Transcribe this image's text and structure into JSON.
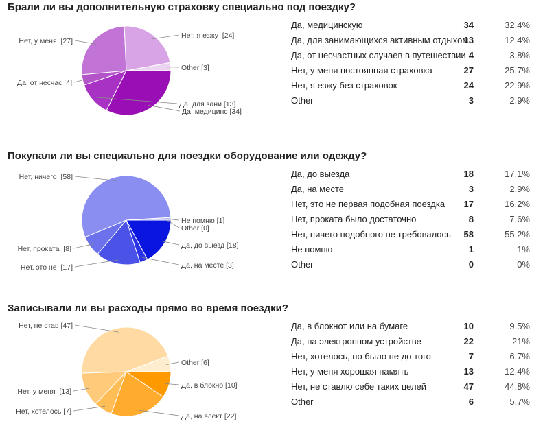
{
  "chart_data": [
    {
      "type": "pie",
      "title": "Брали ли вы дополнительную страховку специально под поездку?",
      "labels": [
        "Да, медицинскую",
        "Да, для занимающихся активным отдыхом",
        "Да, от несчастных случаев в путешествии",
        "Нет, у меня постоянная страховка",
        "Нет, я езжу без страховок",
        "Other"
      ],
      "values": [
        34,
        13,
        4,
        27,
        24,
        3
      ],
      "percents": [
        "32.4%",
        "12.4%",
        "3.8%",
        "25.7%",
        "22.9%",
        "2.9%"
      ],
      "pie_labels": [
        "Да, медицинс [34]",
        "Да, для зани [13]",
        "Да, от несчас [4]",
        "Нет, у меня  [27]",
        "Нет, я езжу  [24]",
        "Other [3]"
      ],
      "colors": [
        "#9a0fb5",
        "#a832c3",
        "#b354c9",
        "#c273d6",
        "#d8a4e6",
        "#ecd3f2"
      ]
    },
    {
      "type": "pie",
      "title": "Покупали ли вы специально для поездки оборудование или одежду?",
      "labels": [
        "Да, до выезда",
        "Да, на месте",
        "Нет, это не первая подобная поездка",
        "Нет, проката было достаточно",
        "Нет, ничего подобного не требовалось",
        "Не помню",
        "Other"
      ],
      "values": [
        18,
        3,
        17,
        8,
        58,
        1,
        0
      ],
      "percents": [
        "17.1%",
        "2.9%",
        "16.2%",
        "7.6%",
        "55.2%",
        "1%",
        "0%"
      ],
      "pie_labels": [
        "Да, до выезд [18]",
        "Да, на месте [3]",
        "Нет, это не  [17]",
        "Нет, проката  [8]",
        "Нет, ничего  [58]",
        "Не помню [1]",
        "Other [0]"
      ],
      "colors": [
        "#0a15e0",
        "#2a33e6",
        "#4a52e8",
        "#6b72ec",
        "#8a8ef0",
        "#b3b6f5",
        "#d6d8fa"
      ]
    },
    {
      "type": "pie",
      "title": "Записывали ли вы расходы прямо во время поездки?",
      "labels": [
        "Да, в блокнот или на бумаге",
        "Да, на электронном устройстве",
        "Нет, хотелось, но было не до того",
        "Нет, у меня хорошая память",
        "Нет, не ставлю себе таких целей",
        "Other"
      ],
      "values": [
        10,
        22,
        7,
        13,
        47,
        6
      ],
      "percents": [
        "9.5%",
        "21%",
        "6.7%",
        "12.4%",
        "44.8%",
        "5.7%"
      ],
      "pie_labels": [
        "Да, в блокно [10]",
        "Да, на элект [22]",
        "Нет, хотелось [7]",
        "Нет, у меня  [13]",
        "Нет, не став [47]",
        "Other [6]"
      ],
      "colors": [
        "#ff9900",
        "#ffab2e",
        "#ffbd55",
        "#ffcb7a",
        "#ffdba3",
        "#ffedd0"
      ]
    }
  ]
}
